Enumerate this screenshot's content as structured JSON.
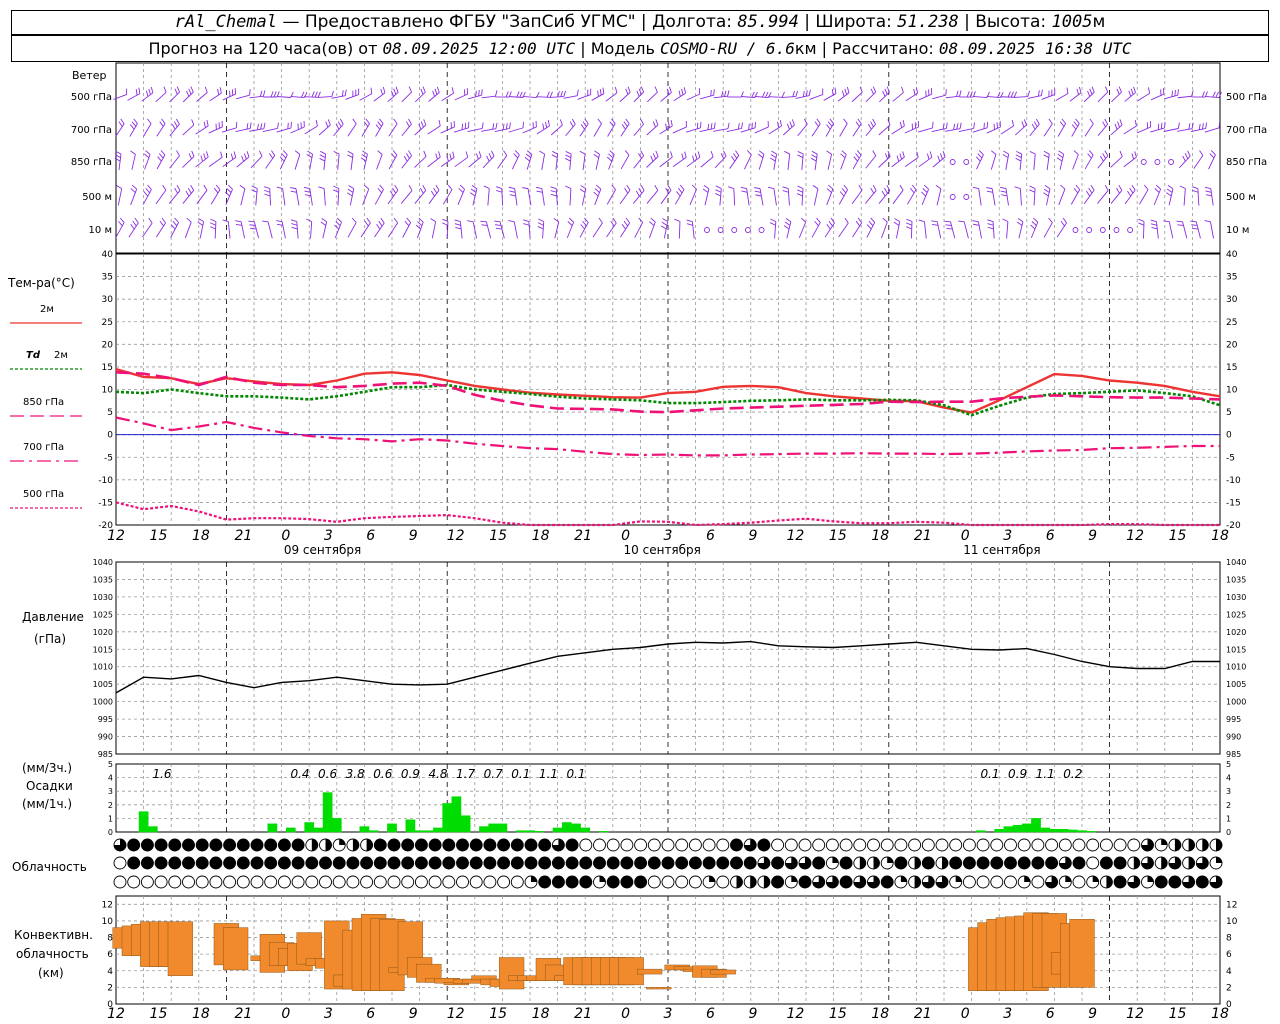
{
  "header": {
    "station": "rAl_Chemal",
    "provider": "— Предоставлено ФГБУ \"ЗапСиб УГМС\"",
    "lon_label": "Долгота:",
    "lon": "85.994",
    "lat_label": "Широта:",
    "lat": "51.238",
    "alt_label": "Высота:",
    "alt": "1005",
    "alt_unit": "м",
    "forecast_label": "Прогноз на 120 часа(ов) от",
    "forecast_start": "08.09.2025 12:00 UTC",
    "model_label": "Модель",
    "model": "COSMO-RU / 6.6",
    "model_unit": "км",
    "calc_label": "Рассчитано:",
    "calc_time": "08.09.2025 16:38 UTC"
  },
  "colors": {
    "t2m": "#ee3333",
    "td2m": "#008800",
    "t850": "#ee1177",
    "t700": "#ee1177",
    "t500": "#ee1177",
    "wind": "#8a2be2",
    "precip": "#00dd00",
    "convective": "#f08a2c",
    "pressure": "#000000",
    "zero_line": "#0000cc"
  },
  "time_axis": {
    "hour_labels": [
      "12",
      "15",
      "18",
      "21",
      "0",
      "3",
      "6",
      "9",
      "12",
      "15",
      "18",
      "21",
      "0",
      "3",
      "6",
      "9",
      "12",
      "15",
      "18",
      "21",
      "0",
      "3",
      "6",
      "9",
      "12",
      "15",
      "18"
    ],
    "day_labels": [
      {
        "text": "09 сентября",
        "hour_index": 4
      },
      {
        "text": "10 сентября",
        "hour_index": 12
      },
      {
        "text": "11 сентября",
        "hour_index": 20
      }
    ]
  },
  "wind_panel": {
    "title": "Ветер",
    "levels": [
      "500 гПа",
      "700 гПа",
      "850 гПа",
      "500 м",
      "10  м"
    ]
  },
  "temp_panel": {
    "title": "Тем-ра(°C)",
    "legend": [
      {
        "key": "t2m",
        "label": "2м"
      },
      {
        "key": "td2m",
        "label_td": "Td",
        "label": "2м"
      },
      {
        "key": "t850",
        "label": "850 гПа"
      },
      {
        "key": "t700",
        "label": "700 гПа"
      },
      {
        "key": "t500",
        "label": "500 гПа"
      }
    ],
    "yticks": [
      "40",
      "35",
      "30",
      "25",
      "20",
      "15",
      "10",
      "5",
      "0",
      "-5",
      "-10",
      "-15",
      "-20"
    ]
  },
  "pressure_panel": {
    "title": "Давление",
    "unit": "(гПа)",
    "yticks": [
      "1040",
      "1035",
      "1030",
      "1025",
      "1020",
      "1015",
      "1010",
      "1005",
      "1000",
      "995",
      "990",
      "985"
    ]
  },
  "precip_panel": {
    "unit3h": "(мм/3ч.)",
    "title": "Осадки",
    "unit1h": "(мм/1ч.)",
    "yticks": [
      "5",
      "4",
      "3",
      "2",
      "1",
      "0"
    ],
    "totals": [
      {
        "hour": 5,
        "text": "1.6"
      },
      {
        "hour": 20,
        "text": "0.4"
      },
      {
        "hour": 23,
        "text": "0.6"
      },
      {
        "hour": 26,
        "text": "3.8"
      },
      {
        "hour": 29,
        "text": "0.6"
      },
      {
        "hour": 32,
        "text": "0.9"
      },
      {
        "hour": 35,
        "text": "4.8"
      },
      {
        "hour": 38,
        "text": "1.7"
      },
      {
        "hour": 41,
        "text": "0.7"
      },
      {
        "hour": 44,
        "text": "0.1"
      },
      {
        "hour": 47,
        "text": "1.1"
      },
      {
        "hour": 50,
        "text": "0.1"
      },
      {
        "hour": 95,
        "text": "0.1"
      },
      {
        "hour": 98,
        "text": "0.9"
      },
      {
        "hour": 101,
        "text": "1.1"
      },
      {
        "hour": 104,
        "text": "0.2"
      }
    ]
  },
  "cloud_panel": {
    "title": "Облачность"
  },
  "conv_panel": {
    "title_1": "Конвективн.",
    "title_2": "облачность",
    "unit": "(км)",
    "yticks": [
      "12",
      "10",
      "8",
      "6",
      "4",
      "2",
      "0"
    ]
  },
  "chart_data": [
    {
      "type": "line",
      "title": "Тем-ра(°C)",
      "x_unit": "hours from 08.09.2025 12:00 UTC",
      "ylim": [
        -20,
        40
      ],
      "series": [
        {
          "name": "2м",
          "x": [
            0,
            3,
            6,
            9,
            12,
            15,
            18,
            21,
            24,
            27,
            30,
            33,
            36,
            39,
            42,
            45,
            48,
            51,
            54,
            57,
            60,
            63,
            66,
            69,
            72,
            75,
            78,
            81,
            84,
            87,
            90,
            93,
            96,
            99,
            102,
            105,
            108,
            111,
            114,
            117,
            120
          ],
          "values": [
            14.5,
            12.8,
            12.5,
            11.2,
            12.5,
            11.8,
            11.2,
            11.0,
            12.0,
            13.5,
            13.8,
            13.2,
            12.0,
            10.8,
            10.0,
            9.3,
            8.9,
            8.6,
            8.3,
            8.2,
            9.2,
            9.5,
            10.6,
            10.8,
            10.5,
            9.2,
            8.5,
            8.0,
            7.5,
            7.4,
            6.0,
            4.9,
            7.6,
            10.5,
            13.4,
            13.0,
            12.0,
            11.5,
            10.8,
            9.5,
            8.5
          ]
        },
        {
          "name": "Td 2м",
          "x": [
            0,
            3,
            6,
            9,
            12,
            15,
            18,
            21,
            24,
            27,
            30,
            33,
            36,
            39,
            42,
            45,
            48,
            51,
            54,
            57,
            60,
            63,
            66,
            69,
            72,
            75,
            78,
            81,
            84,
            87,
            90,
            93,
            96,
            99,
            102,
            105,
            108,
            111,
            114,
            117,
            120
          ],
          "values": [
            9.5,
            9.2,
            10.0,
            9.2,
            8.5,
            8.5,
            8.2,
            7.8,
            8.5,
            9.5,
            10.5,
            10.5,
            11.0,
            10.0,
            9.5,
            9.0,
            8.4,
            8.0,
            7.8,
            7.6,
            7.0,
            7.0,
            7.2,
            7.5,
            7.6,
            7.8,
            7.6,
            7.6,
            7.7,
            7.6,
            6.5,
            4.3,
            6.4,
            8.2,
            9.0,
            9.2,
            9.5,
            9.8,
            9.2,
            8.5,
            6.5
          ]
        },
        {
          "name": "850 гПа",
          "x": [
            0,
            3,
            6,
            9,
            12,
            15,
            18,
            21,
            24,
            27,
            30,
            33,
            36,
            39,
            42,
            45,
            48,
            51,
            54,
            57,
            60,
            63,
            66,
            69,
            72,
            75,
            78,
            81,
            84,
            87,
            90,
            93,
            96,
            99,
            102,
            105,
            108,
            111,
            114,
            117,
            120
          ],
          "values": [
            13.8,
            13.5,
            12.5,
            11.0,
            12.8,
            11.5,
            11.0,
            11.0,
            10.5,
            10.8,
            11.3,
            11.5,
            10.8,
            8.8,
            7.5,
            6.5,
            5.8,
            5.7,
            5.6,
            5.1,
            5.0,
            5.4,
            5.8,
            6.0,
            6.2,
            6.4,
            6.6,
            6.8,
            7.3,
            7.2,
            7.3,
            7.3,
            8.0,
            8.4,
            8.7,
            8.5,
            8.3,
            8.2,
            8.2,
            8.0,
            7.8
          ]
        },
        {
          "name": "700 гПа",
          "x": [
            0,
            3,
            6,
            9,
            12,
            15,
            18,
            21,
            24,
            27,
            30,
            33,
            36,
            39,
            42,
            45,
            48,
            51,
            54,
            57,
            60,
            63,
            66,
            69,
            72,
            75,
            78,
            81,
            84,
            87,
            90,
            93,
            96,
            99,
            102,
            105,
            108,
            111,
            114,
            117,
            120
          ],
          "values": [
            3.8,
            2.5,
            1.0,
            1.8,
            2.8,
            1.5,
            0.5,
            -0.3,
            -0.8,
            -1.0,
            -1.5,
            -1.0,
            -1.3,
            -2.0,
            -2.5,
            -3.0,
            -3.2,
            -3.8,
            -4.3,
            -4.5,
            -4.4,
            -4.6,
            -4.6,
            -4.4,
            -4.3,
            -4.2,
            -4.2,
            -4.1,
            -4.2,
            -4.2,
            -4.3,
            -4.2,
            -4.0,
            -3.7,
            -3.5,
            -3.4,
            -3.0,
            -2.9,
            -2.7,
            -2.5,
            -2.5
          ]
        },
        {
          "name": "500 гПа",
          "x": [
            0,
            3,
            6,
            9,
            12,
            15,
            18,
            21,
            24,
            27,
            30,
            33,
            36,
            39,
            42,
            45,
            48,
            51,
            54,
            57,
            60,
            63,
            66,
            69,
            72,
            75,
            78,
            81,
            84,
            87,
            90,
            93,
            96,
            99,
            102,
            105,
            108,
            111,
            114,
            117,
            120
          ],
          "values": [
            -15.0,
            -16.5,
            -15.8,
            -17.0,
            -18.8,
            -18.5,
            -18.5,
            -18.7,
            -19.3,
            -18.5,
            -18.2,
            -18.0,
            -17.8,
            -18.5,
            -19.5,
            -20.5,
            -21.0,
            -20.8,
            -20.0,
            -19.2,
            -19.3,
            -20.0,
            -19.8,
            -19.5,
            -19.0,
            -18.6,
            -19.2,
            -19.6,
            -19.6,
            -19.3,
            -19.5,
            -20.5,
            -21.2,
            -21.0,
            -20.5,
            -20.0,
            -19.8,
            -19.8,
            -20.0,
            -20.5,
            -21.0
          ]
        }
      ]
    },
    {
      "type": "line",
      "title": "Давление (гПа)",
      "ylim": [
        985,
        1040
      ],
      "series": [
        {
          "name": "Давление",
          "x": [
            0,
            3,
            6,
            9,
            12,
            15,
            18,
            21,
            24,
            27,
            30,
            33,
            36,
            39,
            42,
            45,
            48,
            51,
            54,
            57,
            60,
            63,
            66,
            69,
            72,
            75,
            78,
            81,
            84,
            87,
            90,
            93,
            96,
            99,
            102,
            105,
            108,
            111,
            114,
            117,
            120
          ],
          "values": [
            1002.5,
            1007.0,
            1006.5,
            1007.5,
            1005.5,
            1004.0,
            1005.5,
            1006.0,
            1007.0,
            1006.0,
            1005.0,
            1004.8,
            1005.0,
            1007.0,
            1009.0,
            1011.0,
            1013.0,
            1014.0,
            1015.0,
            1015.5,
            1016.5,
            1017.0,
            1016.8,
            1017.2,
            1016.0,
            1015.7,
            1015.5,
            1016.0,
            1016.5,
            1017.0,
            1016.0,
            1015.0,
            1014.8,
            1015.2,
            1013.5,
            1011.5,
            1010.0,
            1009.5,
            1009.5,
            1011.5,
            1011.5
          ]
        }
      ]
    },
    {
      "type": "bar",
      "title": "Осадки (мм/1ч.)",
      "ylim": [
        0,
        5
      ],
      "x": [
        3,
        4,
        17,
        19,
        21,
        22,
        23,
        24,
        27,
        28,
        30,
        32,
        33,
        34,
        35,
        36,
        37,
        38,
        40,
        41,
        42,
        44,
        45,
        46,
        48,
        49,
        50,
        51,
        53,
        94,
        96,
        97,
        98,
        99,
        100,
        101,
        102,
        103,
        104,
        105,
        106
      ],
      "values": [
        1.5,
        0.4,
        0.6,
        0.3,
        0.7,
        0.3,
        2.9,
        1.0,
        0.4,
        0.1,
        0.6,
        0.9,
        0.1,
        0.1,
        0.3,
        2.1,
        2.6,
        1.2,
        0.4,
        0.6,
        0.6,
        0.1,
        0.1,
        0.05,
        0.3,
        0.7,
        0.6,
        0.3,
        0.05,
        0.1,
        0.2,
        0.4,
        0.5,
        0.6,
        1.0,
        0.3,
        0.2,
        0.2,
        0.15,
        0.1,
        0.05
      ]
    },
    {
      "type": "table",
      "title": "Облачность",
      "row_meaning": [
        "upper",
        "middle",
        "lower"
      ],
      "values": [
        "3444444444444422122444444444444434000000000004340000000000000000000000000003122223444444444444444444444442",
        "0444444444444444444444444444444444444444444444434334142214242444444443404423232314241424242433321444444444",
        "0000000000000000000000000000001444414440000102224143343341233100001031012431443434444444144434344434222110"
      ]
    },
    {
      "type": "bar",
      "title": "Конвективн. облачность (км)",
      "ylim": [
        0,
        13
      ],
      "bars": [
        [
          1,
          6.7,
          9.2
        ],
        [
          2,
          5.8,
          9.4
        ],
        [
          3,
          5.8,
          9.6
        ],
        [
          4,
          4.5,
          9.9
        ],
        [
          5,
          4.5,
          9.9
        ],
        [
          6,
          4.5,
          9.9
        ],
        [
          7,
          3.4,
          9.9
        ],
        [
          12,
          4.7,
          9.7
        ],
        [
          13,
          4.1,
          9.2
        ],
        [
          16,
          5.2,
          5.8
        ],
        [
          17,
          3.8,
          8.4
        ],
        [
          18,
          4.6,
          7.4
        ],
        [
          19,
          4.6,
          6.7
        ],
        [
          20,
          4.0,
          7.3
        ],
        [
          21,
          4.8,
          8.6
        ],
        [
          22,
          4.6,
          5.5
        ],
        [
          23,
          4.3,
          5.5
        ],
        [
          24,
          1.8,
          10.0
        ],
        [
          25,
          2.1,
          3.5
        ],
        [
          26,
          1.8,
          8.9
        ],
        [
          27,
          1.6,
          10.3
        ],
        [
          28,
          1.6,
          10.8
        ],
        [
          29,
          1.6,
          10.3
        ],
        [
          30,
          1.6,
          10.2
        ],
        [
          31,
          3.8,
          4.4
        ],
        [
          32,
          3.5,
          9.9
        ],
        [
          33,
          3.2,
          5.6
        ],
        [
          34,
          2.6,
          4.8
        ],
        [
          35,
          2.6,
          3.1
        ],
        [
          36,
          2.5,
          3.1
        ],
        [
          37,
          2.3,
          2.6
        ],
        [
          38,
          2.5,
          3.0
        ],
        [
          39,
          2.5,
          3.0
        ],
        [
          40,
          2.9,
          3.4
        ],
        [
          41,
          2.3,
          3.0
        ],
        [
          42,
          2.1,
          3.0
        ],
        [
          43,
          1.8,
          5.6
        ],
        [
          44,
          2.8,
          3.4
        ],
        [
          45,
          2.8,
          3.4
        ],
        [
          46,
          2.8,
          3.4
        ],
        [
          47,
          2.8,
          5.5
        ],
        [
          48,
          2.8,
          4.7
        ],
        [
          49,
          2.8,
          3.4
        ],
        [
          50,
          2.3,
          5.6
        ],
        [
          51,
          2.3,
          5.6
        ],
        [
          52,
          2.3,
          5.6
        ],
        [
          53,
          2.3,
          5.6
        ],
        [
          54,
          2.3,
          5.6
        ],
        [
          55,
          2.3,
          5.6
        ],
        [
          56,
          2.3,
          5.6
        ],
        [
          58,
          3.6,
          4.2
        ],
        [
          59,
          1.8,
          2.0
        ],
        [
          61,
          4.1,
          4.7
        ],
        [
          62,
          4.1,
          4.5
        ],
        [
          63,
          3.9,
          4.2
        ],
        [
          64,
          3.2,
          4.6
        ],
        [
          65,
          3.2,
          4.2
        ],
        [
          66,
          3.6,
          4.1
        ],
        [
          94,
          1.6,
          9.2
        ],
        [
          95,
          1.6,
          9.8
        ],
        [
          96,
          1.6,
          10.2
        ],
        [
          97,
          1.6,
          10.4
        ],
        [
          98,
          1.6,
          10.5
        ],
        [
          99,
          1.6,
          10.6
        ],
        [
          100,
          1.6,
          11.0
        ],
        [
          101,
          2.0,
          10.9
        ],
        [
          102,
          2.0,
          10.9
        ],
        [
          103,
          3.6,
          6.2
        ],
        [
          104,
          2.0,
          9.7
        ],
        [
          105,
          2.0,
          10.2
        ]
      ]
    }
  ]
}
